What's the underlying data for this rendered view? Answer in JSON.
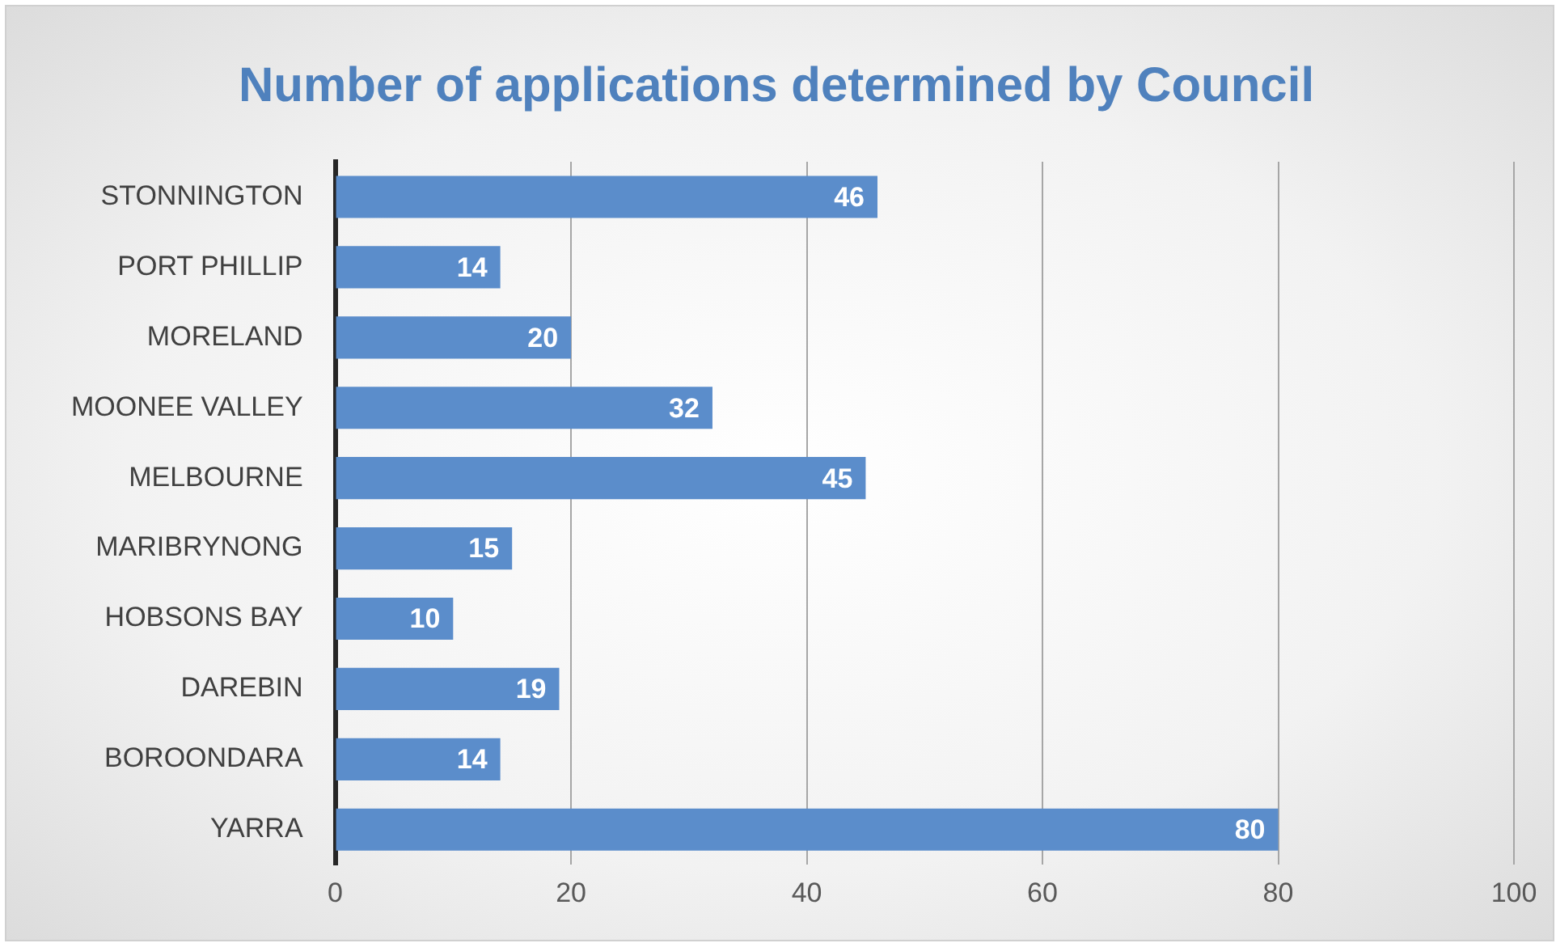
{
  "chart_data": {
    "type": "bar",
    "orientation": "horizontal",
    "title": "Number of applications determined by Council",
    "categories": [
      "STONNINGTON",
      "PORT PHILLIP",
      "MORELAND",
      "MOONEE VALLEY",
      "MELBOURNE",
      "MARIBRYNONG",
      "HOBSONS BAY",
      "DAREBIN",
      "BOROONDARA",
      "YARRA"
    ],
    "values": [
      46,
      14,
      20,
      32,
      45,
      15,
      10,
      19,
      14,
      80
    ],
    "color": "#5b8dcb",
    "xlim": [
      0,
      100
    ],
    "xticks": [
      0,
      20,
      40,
      60,
      80,
      100
    ],
    "grid": "x",
    "data_labels": true,
    "legend": false
  }
}
